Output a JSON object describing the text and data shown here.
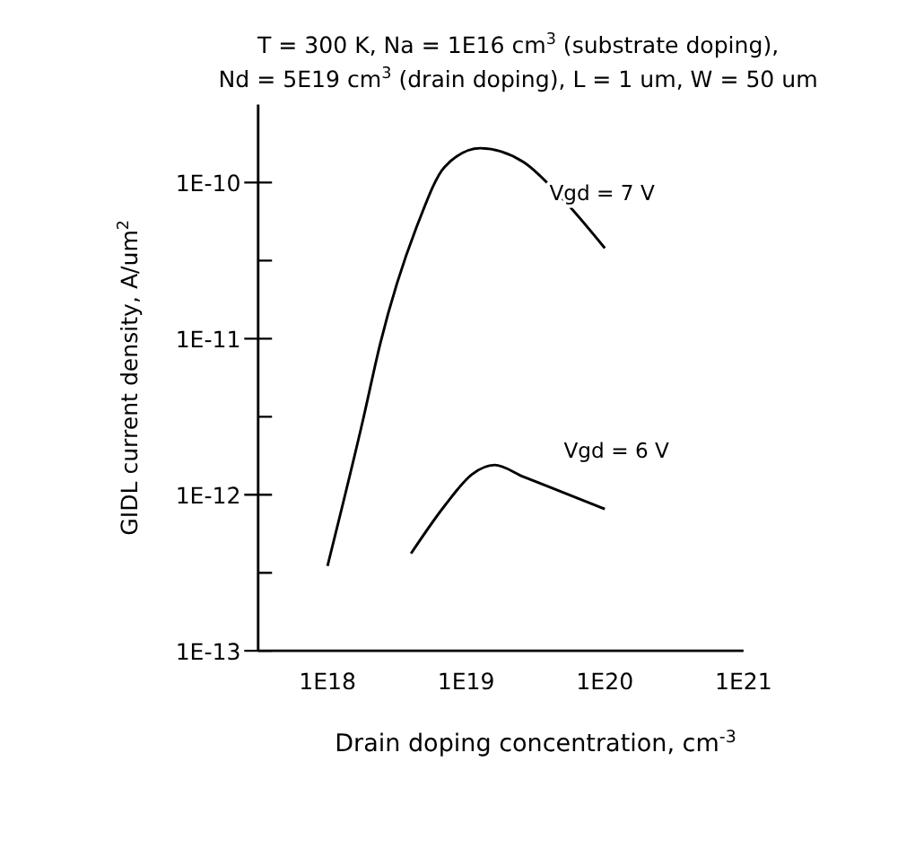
{
  "chart_data": {
    "type": "line",
    "title": "T = 300 K, Na = 1E16 cm$^{3}$ (substrate doping),\nNd = 5E19 cm$^{3}$ (drain doping), L = 1 um, W = 50 um",
    "xlabel": "Drain doping concentration, cm$^{-3}$",
    "ylabel": "GIDL current density, A/um$^{2}$",
    "log": "xy",
    "grid": false,
    "line_style": "solid",
    "xlim": [
      3.16e+17,
      1e+21
    ],
    "xticks": [
      {
        "value": 1e+18,
        "label": "1E18"
      },
      {
        "value": 1e+19,
        "label": "1E19"
      },
      {
        "value": 1e+20,
        "label": "1E20"
      },
      {
        "value": 1e+21,
        "label": "1E21"
      }
    ],
    "ylim": [
      1e-13,
      3.16e-10
    ],
    "yticks": [
      {
        "value": 1e-13,
        "label": "1E-13"
      },
      {
        "value": 3.16e-13,
        "label": null
      },
      {
        "value": 1e-12,
        "label": "1E-12"
      },
      {
        "value": 3.16e-12,
        "label": null
      },
      {
        "value": 1e-11,
        "label": "1E-11"
      },
      {
        "value": 3.16e-11,
        "label": null
      },
      {
        "value": 1e-10,
        "label": "1E-10"
      }
    ],
    "series": [
      {
        "color": "#000000",
        "x": [
          1e+18,
          1.8e+18,
          2.4e+18,
          4.5e+18,
          7e+18,
          1.26e+19,
          2.6e+19,
          4.8e+19,
          1e+20
        ],
        "values": [
          3.5e-13,
          3e-12,
          9.3e-12,
          5.5e-11,
          1.26e-10,
          1.66e-10,
          1.35e-10,
          8.1e-11,
          3.8e-11
        ]
      },
      {
        "color": "#000000",
        "x": [
          4e+18,
          7e+18,
          1.1e+19,
          1.6e+19,
          2.6e+19,
          4.8e+19,
          1e+20
        ],
        "values": [
          4.2e-13,
          8.5e-13,
          1.35e-12,
          1.55e-12,
          1.3e-12,
          1.05e-12,
          8.1e-13
        ]
      }
    ],
    "annotations": [
      "Vgd = 7 V",
      "Vgd = 6 V"
    ]
  }
}
